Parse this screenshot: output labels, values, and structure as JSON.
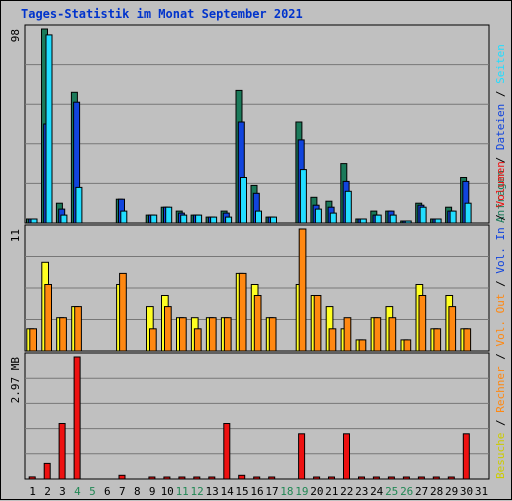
{
  "title": "Tages-Statistik im Monat September 2021",
  "colors": {
    "anfragen": "#1b7a5a",
    "dateien": "#1144dd",
    "seiten": "#22ddff",
    "besuche": "#ffff22",
    "rechner": "#ff8811",
    "volumen": "#ee1111",
    "weekend": "#228855",
    "weekday": "#000000",
    "grid": "#777777",
    "plot_bg": "#c0c0c0"
  },
  "right_labels": {
    "top": [
      {
        "text": "Anfragen",
        "color": "#1b7a5a"
      },
      {
        "text": " / ",
        "color": "#000000"
      },
      {
        "text": "Dateien",
        "color": "#1144dd"
      },
      {
        "text": " / ",
        "color": "#000000"
      },
      {
        "text": "Seiten",
        "color": "#22ddff"
      }
    ],
    "middle": [
      {
        "text": "Besuche",
        "color": "#cccc00"
      },
      {
        "text": " / ",
        "color": "#000000"
      },
      {
        "text": "Rechner",
        "color": "#ff8811"
      },
      {
        "text": " / ",
        "color": "#000000"
      },
      {
        "text": "Vol. Out",
        "color": "#ff8811"
      },
      {
        "text": " / ",
        "color": "#000000"
      },
      {
        "text": "Vol. In",
        "color": "#1144dd"
      },
      {
        "text": " / ",
        "color": "#000000"
      },
      {
        "text": "Volumen",
        "color": "#ee1111"
      }
    ]
  },
  "chart_data": [
    {
      "type": "bar",
      "panel": "hits",
      "ymax_label": "98",
      "ylim": [
        0,
        98
      ],
      "grid": true,
      "x": [
        1,
        2,
        3,
        4,
        5,
        6,
        7,
        8,
        9,
        10,
        11,
        12,
        13,
        14,
        15,
        16,
        17,
        18,
        19,
        20,
        21,
        22,
        23,
        24,
        25,
        26,
        27,
        28,
        29,
        30,
        31
      ],
      "weekend_days": [
        4,
        5,
        11,
        12,
        18,
        19,
        25,
        26
      ],
      "series": [
        {
          "name": "Anfragen",
          "values": [
            2,
            98,
            10,
            66,
            0,
            0,
            12,
            0,
            4,
            8,
            6,
            4,
            3,
            6,
            67,
            19,
            3,
            0,
            51,
            13,
            11,
            30,
            2,
            6,
            6,
            1,
            10,
            2,
            8,
            23,
            0
          ]
        },
        {
          "name": "Dateien",
          "values": [
            2,
            50,
            7,
            61,
            0,
            0,
            12,
            0,
            4,
            8,
            5,
            4,
            3,
            5,
            51,
            15,
            3,
            0,
            42,
            9,
            8,
            21,
            2,
            4,
            6,
            1,
            9,
            2,
            6,
            21,
            0
          ]
        },
        {
          "name": "Seiten",
          "values": [
            2,
            95,
            4,
            18,
            0,
            0,
            6,
            0,
            4,
            8,
            4,
            4,
            3,
            3,
            23,
            6,
            3,
            0,
            27,
            7,
            5,
            16,
            2,
            4,
            4,
            1,
            8,
            2,
            6,
            10,
            0
          ]
        }
      ]
    },
    {
      "type": "bar",
      "panel": "visits",
      "ymax_label": "11",
      "ylim": [
        0,
        11
      ],
      "grid": true,
      "x": [
        1,
        2,
        3,
        4,
        5,
        6,
        7,
        8,
        9,
        10,
        11,
        12,
        13,
        14,
        15,
        16,
        17,
        18,
        19,
        20,
        21,
        22,
        23,
        24,
        25,
        26,
        27,
        28,
        29,
        30,
        31
      ],
      "series": [
        {
          "name": "Besuche",
          "values": [
            2,
            8,
            3,
            4,
            0,
            0,
            6,
            0,
            4,
            5,
            3,
            3,
            3,
            3,
            7,
            6,
            3,
            0,
            6,
            5,
            4,
            2,
            1,
            3,
            4,
            1,
            6,
            2,
            5,
            2,
            0
          ]
        },
        {
          "name": "Rechner",
          "values": [
            2,
            6,
            3,
            4,
            0,
            0,
            7,
            0,
            2,
            4,
            3,
            2,
            3,
            3,
            7,
            5,
            3,
            0,
            11,
            5,
            2,
            3,
            1,
            3,
            3,
            1,
            5,
            2,
            4,
            2,
            0
          ]
        }
      ]
    },
    {
      "type": "bar",
      "panel": "volume",
      "ymax_label": "2.97 MB",
      "ylim": [
        0,
        2.97
      ],
      "grid": true,
      "x": [
        1,
        2,
        3,
        4,
        5,
        6,
        7,
        8,
        9,
        10,
        11,
        12,
        13,
        14,
        15,
        16,
        17,
        18,
        19,
        20,
        21,
        22,
        23,
        24,
        25,
        26,
        27,
        28,
        29,
        30,
        31
      ],
      "series": [
        {
          "name": "Volumen",
          "values": [
            0.05,
            0.38,
            1.35,
            2.97,
            0,
            0,
            0.09,
            0,
            0.02,
            0.02,
            0.02,
            0.02,
            0.02,
            1.35,
            0.09,
            0.02,
            0.02,
            0,
            1.1,
            0.02,
            0.02,
            1.1,
            0.02,
            0.02,
            0.02,
            0.02,
            0.02,
            0.02,
            0.02,
            1.1,
            0
          ]
        }
      ]
    }
  ]
}
